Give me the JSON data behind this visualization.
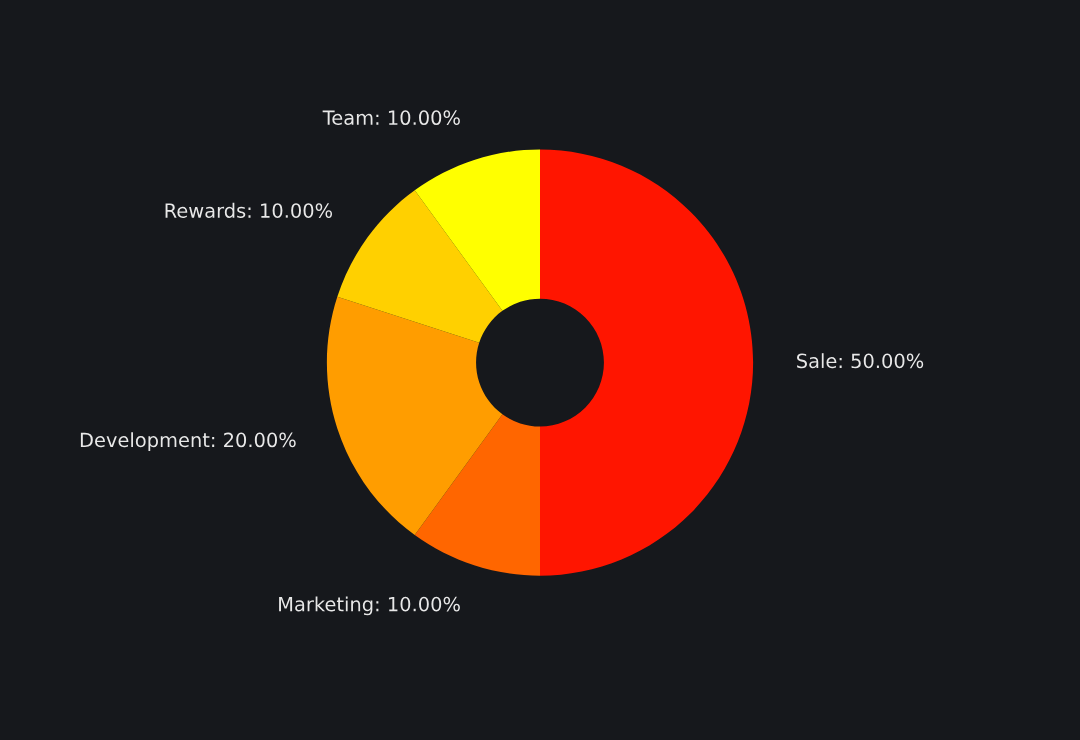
{
  "chart_data": {
    "type": "donut",
    "categories": [
      "Sale: 50.00%",
      "Marketing: 10.00%",
      "Development: 20.00%",
      "Rewards: 10.00%",
      "Team: 10.00%"
    ],
    "values": [
      50,
      10,
      20,
      10,
      10
    ],
    "colors": [
      "#ff1500",
      "#ff6600",
      "#ff9d00",
      "#ffd000",
      "#ffff00"
    ],
    "legend": false
  }
}
